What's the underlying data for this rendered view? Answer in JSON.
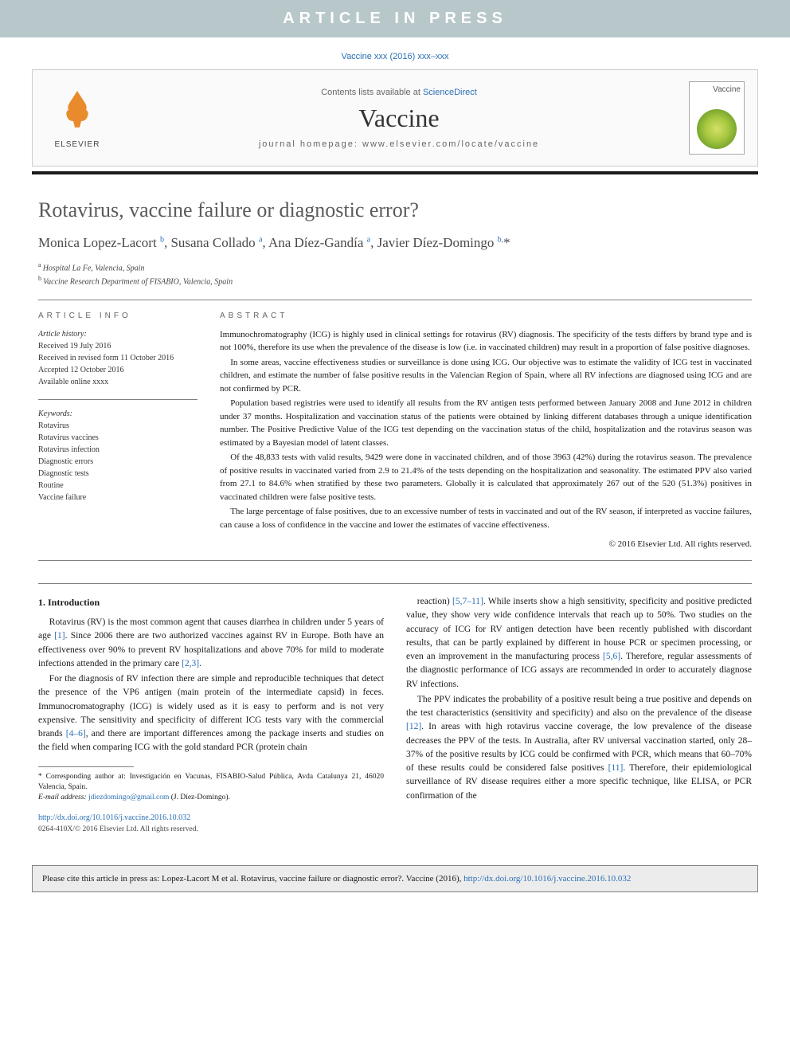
{
  "banner": "ARTICLE IN PRESS",
  "citation_top": "Vaccine xxx (2016) xxx–xxx",
  "header": {
    "contents_prefix": "Contents lists available at ",
    "contents_link": "ScienceDirect",
    "journal": "Vaccine",
    "homepage_label": "journal homepage: ",
    "homepage_url": "www.elsevier.com/locate/vaccine",
    "publisher_name": "ELSEVIER",
    "cover_title": "Vaccine"
  },
  "title": "Rotavirus, vaccine failure or diagnostic error?",
  "authors_html": "Monica Lopez-Lacort <sup>b</sup>, Susana Collado <sup>a</sup>, Ana Díez-Gandía <sup>a</sup>, Javier Díez-Domingo <sup>b,</sup>*",
  "affiliations": [
    {
      "marker": "a",
      "text": "Hospital La Fe, Valencia, Spain"
    },
    {
      "marker": "b",
      "text": "Vaccine Research Department of FISABIO, Valencia, Spain"
    }
  ],
  "info": {
    "heading": "ARTICLE INFO",
    "history_label": "Article history:",
    "history": [
      "Received 19 July 2016",
      "Received in revised form 11 October 2016",
      "Accepted 12 October 2016",
      "Available online xxxx"
    ],
    "keywords_label": "Keywords:",
    "keywords": [
      "Rotavirus",
      "Rotavirus vaccines",
      "Rotavirus infection",
      "Diagnostic errors",
      "Diagnostic tests",
      "Routine",
      "Vaccine failure"
    ]
  },
  "abstract": {
    "heading": "ABSTRACT",
    "paragraphs": [
      "Immunochromatography (ICG) is highly used in clinical settings for rotavirus (RV) diagnosis. The specificity of the tests differs by brand type and is not 100%, therefore its use when the prevalence of the disease is low (i.e. in vaccinated children) may result in a proportion of false positive diagnoses.",
      "In some areas, vaccine effectiveness studies or surveillance is done using ICG. Our objective was to estimate the validity of ICG test in vaccinated children, and estimate the number of false positive results in the Valencian Region of Spain, where all RV infections are diagnosed using ICG and are not confirmed by PCR.",
      "Population based registries were used to identify all results from the RV antigen tests performed between January 2008 and June 2012 in children under 37 months. Hospitalization and vaccination status of the patients were obtained by linking different databases through a unique identification number. The Positive Predictive Value of the ICG test depending on the vaccination status of the child, hospitalization and the rotavirus season was estimated by a Bayesian model of latent classes.",
      "Of the 48,833 tests with valid results, 9429 were done in vaccinated children, and of those 3963 (42%) during the rotavirus season. The prevalence of positive results in vaccinated varied from 2.9 to 21.4% of the tests depending on the hospitalization and seasonality. The estimated PPV also varied from 27.1 to 84.6% when stratified by these two parameters. Globally it is calculated that approximately 267 out of the 520 (51.3%) positives in vaccinated children were false positive tests.",
      "The large percentage of false positives, due to an excessive number of tests in vaccinated and out of the RV season, if interpreted as vaccine failures, can cause a loss of confidence in the vaccine and lower the estimates of vaccine effectiveness."
    ],
    "copyright": "© 2016 Elsevier Ltd. All rights reserved."
  },
  "body": {
    "section_title": "1. Introduction",
    "col1": [
      "Rotavirus (RV) is the most common agent that causes diarrhea in children under 5 years of age <span class='ref'>[1]</span>. Since 2006 there are two authorized vaccines against RV in Europe. Both have an effectiveness over 90% to prevent RV hospitalizations and above 70% for mild to moderate infections attended in the primary care <span class='ref'>[2,3]</span>.",
      "For the diagnosis of RV infection there are simple and reproducible techniques that detect the presence of the VP6 antigen (main protein of the intermediate capsid) in feces. Immunocromatography (ICG) is widely used as it is easy to perform and is not very expensive. The sensitivity and specificity of different ICG tests vary with the commercial brands <span class='ref'>[4–6]</span>, and there are important differences among the package inserts and studies on the field when comparing ICG with the gold standard PCR (protein chain"
    ],
    "col2": [
      "reaction) <span class='ref'>[5,7–11]</span>. While inserts show a high sensitivity, specificity and positive predicted value, they show very wide confidence intervals that reach up to 50%. Two studies on the accuracy of ICG for RV antigen detection have been recently published with discordant results, that can be partly explained by different in house PCR or specimen processing, or even an improvement in the manufacturing process <span class='ref'>[5,6]</span>. Therefore, regular assessments of the diagnostic performance of ICG assays are recommended in order to accurately diagnose RV infections.",
      "The PPV indicates the probability of a positive result being a true positive and depends on the test characteristics (sensitivity and specificity) and also on the prevalence of the disease <span class='ref'>[12]</span>. In areas with high rotavirus vaccine coverage, the low prevalence of the disease decreases the PPV of the tests. In Australia, after RV universal vaccination started, only 28–37% of the positive results by ICG could be confirmed with PCR, which means that 60–70% of these results could be considered false positives <span class='ref'>[11]</span>. Therefore, their epidemiological surveillance of RV disease requires either a more specific technique, like ELISA, or PCR confirmation of the"
    ]
  },
  "footnote": {
    "corr": "* Corresponding author at: Investigación en Vacunas, FISABIO-Salud Pública, Avda Catalunya 21, 46020 Valencia, Spain.",
    "email_label": "E-mail address:",
    "email": "jdiezdomingo@gmail.com",
    "email_who": "(J. Díez-Domingo)."
  },
  "doi": {
    "url": "http://dx.doi.org/10.1016/j.vaccine.2016.10.032",
    "copyright": "0264-410X/© 2016 Elsevier Ltd. All rights reserved."
  },
  "cite_box": {
    "prefix": "Please cite this article in press as: Lopez-Lacort M et al. Rotavirus, vaccine failure or diagnostic error?. Vaccine (2016), ",
    "link": "http://dx.doi.org/10.1016/j.vaccine.2016.10.032"
  },
  "colors": {
    "banner_bg": "#b8c8ca",
    "link": "#2a6fb5",
    "elsevier_orange": "#e98b2c",
    "rule": "#1a1a1a",
    "grey_border": "#808080",
    "cite_bg": "#ececec"
  }
}
